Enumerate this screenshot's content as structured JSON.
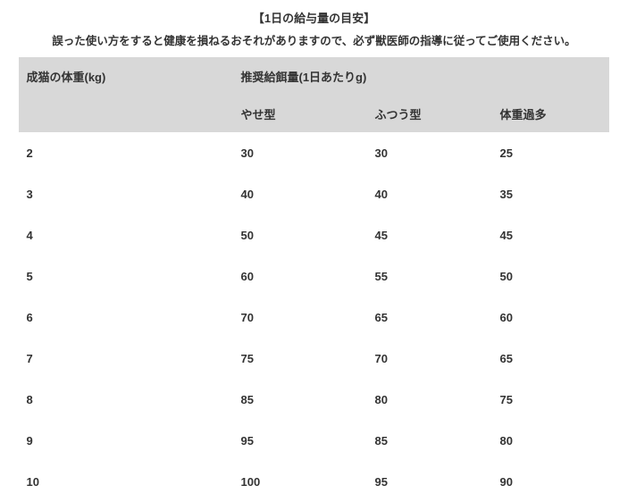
{
  "title": "【1日の給与量の目安】",
  "subtitle": "誤った使い方をすると健康を損ねるおそれがありますので、必ず獣医師の指導に従ってご使用ください。",
  "table": {
    "header_row1": {
      "weight_label": "成猫の体重(kg)",
      "recommended_label": "推奨給餌量(1日あたりg)"
    },
    "header_row2": {
      "col_a": "やせ型",
      "col_b": "ふつう型",
      "col_c": "体重過多"
    },
    "rows": [
      {
        "w": "2",
        "a": "30",
        "b": "30",
        "c": "25"
      },
      {
        "w": "3",
        "a": "40",
        "b": "40",
        "c": "35"
      },
      {
        "w": "4",
        "a": "50",
        "b": "45",
        "c": "45"
      },
      {
        "w": "5",
        "a": "60",
        "b": "55",
        "c": "50"
      },
      {
        "w": "6",
        "a": "70",
        "b": "65",
        "c": "60"
      },
      {
        "w": "7",
        "a": "75",
        "b": "70",
        "c": "65"
      },
      {
        "w": "8",
        "a": "85",
        "b": "80",
        "c": "75"
      },
      {
        "w": "9",
        "a": "95",
        "b": "85",
        "c": "80"
      },
      {
        "w": "10",
        "a": "100",
        "b": "95",
        "c": "90"
      }
    ]
  },
  "style": {
    "header_bg": "#d8d8d8",
    "text_color": "#333333",
    "background": "#ffffff",
    "font_size_title": 13,
    "font_size_subtitle": 12.5,
    "font_size_cell": 13
  }
}
